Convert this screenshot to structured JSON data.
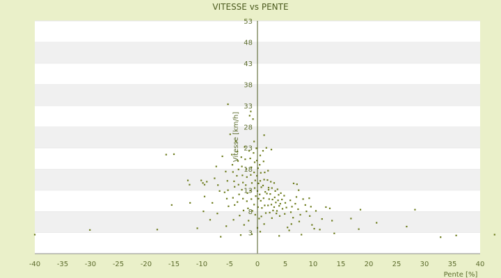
{
  "chart_data": {
    "type": "scatter",
    "title": "VITESSE vs PENTE",
    "xlabel": "Pente [%]",
    "ylabel": "Vitesse [km/h]",
    "xlim": [
      -40,
      40
    ],
    "ylim": [
      -2,
      53
    ],
    "x_ticks": [
      -40,
      -35,
      -30,
      -25,
      -20,
      -15,
      -10,
      -5,
      0,
      5,
      10,
      15,
      20,
      25,
      30,
      35,
      40
    ],
    "y_ticks": [
      3,
      8,
      13,
      18,
      23,
      28,
      33,
      38,
      43,
      48,
      53
    ],
    "grid": "horizontal bands",
    "legend": "none",
    "colors": {
      "background": "#eaf0c9",
      "band": "#f0f0f0",
      "plot": "#ffffff",
      "point": "#6b7a1a",
      "axis": "#4b5a1e"
    },
    "points": [
      [
        -40,
        2.5
      ],
      [
        -30.1,
        3.6
      ],
      [
        -18,
        3.7
      ],
      [
        -16.4,
        21.4
      ],
      [
        -15,
        21.5
      ],
      [
        -15.4,
        9.5
      ],
      [
        -12.2,
        14.3
      ],
      [
        -12.5,
        15.3
      ],
      [
        -12.1,
        10.0
      ],
      [
        -10.8,
        4.0
      ],
      [
        -10.1,
        15.3
      ],
      [
        -9.8,
        14.7
      ],
      [
        -9.5,
        14.3
      ],
      [
        -9.5,
        11.5
      ],
      [
        -9.7,
        8.0
      ],
      [
        -9.1,
        15.0
      ],
      [
        -8.5,
        6.0
      ],
      [
        -8.1,
        10.0
      ],
      [
        -7.4,
        18.6
      ],
      [
        -7.7,
        15.8
      ],
      [
        -7.1,
        14.2
      ],
      [
        -6.8,
        12.8
      ],
      [
        -7.2,
        7.5
      ],
      [
        -6.6,
        2.0
      ],
      [
        -6.3,
        21.0
      ],
      [
        -5.7,
        17.4
      ],
      [
        -5.4,
        15.2
      ],
      [
        -5.3,
        13.0
      ],
      [
        -5.9,
        12.5
      ],
      [
        -5.5,
        11.0
      ],
      [
        -5.2,
        9.2
      ],
      [
        -5.6,
        4.5
      ],
      [
        -5.3,
        33.3
      ],
      [
        -4.9,
        26.2
      ],
      [
        -4.6,
        21.4
      ],
      [
        -4.5,
        19.0
      ],
      [
        -4.4,
        17.3
      ],
      [
        -4.2,
        15.1
      ],
      [
        -4.1,
        13.8
      ],
      [
        -4.4,
        11.2
      ],
      [
        -4.1,
        9.5
      ],
      [
        -4.3,
        6.0
      ],
      [
        -3.9,
        24.5
      ],
      [
        -3.6,
        22.1
      ],
      [
        -3.5,
        19.9
      ],
      [
        -3.4,
        17.9
      ],
      [
        -3.7,
        16.4
      ],
      [
        -3.4,
        14.3
      ],
      [
        -3.3,
        12.0
      ],
      [
        -3.6,
        10.2
      ],
      [
        -3.2,
        7.0
      ],
      [
        -3.0,
        2.4
      ],
      [
        -2.9,
        20.8
      ],
      [
        -2.8,
        18.6
      ],
      [
        -2.7,
        16.5
      ],
      [
        -2.6,
        14.8
      ],
      [
        -2.8,
        13.1
      ],
      [
        -2.6,
        11.0
      ],
      [
        -2.5,
        8.2
      ],
      [
        -2.4,
        4.8
      ],
      [
        -2.3,
        23.2
      ],
      [
        -2.2,
        20.3
      ],
      [
        -2.0,
        18.0
      ],
      [
        -1.9,
        16.1
      ],
      [
        -2.1,
        14.2
      ],
      [
        -1.8,
        12.3
      ],
      [
        -1.9,
        10.4
      ],
      [
        -1.7,
        8.7
      ],
      [
        -1.6,
        5.8
      ],
      [
        -1.4,
        30.6
      ],
      [
        -1.2,
        31.6
      ],
      [
        -1.5,
        22.3
      ],
      [
        -1.3,
        20.5
      ],
      [
        -1.1,
        18.4
      ],
      [
        -1.2,
        16.6
      ],
      [
        -1.0,
        14.7
      ],
      [
        -1.3,
        12.9
      ],
      [
        -1.1,
        10.9
      ],
      [
        -0.9,
        8.1
      ],
      [
        -1.0,
        2.6
      ],
      [
        -0.8,
        29.8
      ],
      [
        -0.6,
        24.5
      ],
      [
        -0.7,
        21.8
      ],
      [
        -0.5,
        19.6
      ],
      [
        -0.6,
        17.2
      ],
      [
        -0.4,
        15.3
      ],
      [
        -0.5,
        13.5
      ],
      [
        -0.3,
        11.6
      ],
      [
        -0.6,
        9.6
      ],
      [
        -0.4,
        7.2
      ],
      [
        -0.2,
        22.9
      ],
      [
        -0.1,
        20.0
      ],
      [
        0.1,
        18.2
      ],
      [
        -0.1,
        16.4
      ],
      [
        0.2,
        14.6
      ],
      [
        0.0,
        12.8
      ],
      [
        0.2,
        11.0
      ],
      [
        0.1,
        9.0
      ],
      [
        0.3,
        6.3
      ],
      [
        0.0,
        4.1
      ],
      [
        0.5,
        21.2
      ],
      [
        0.4,
        19.0
      ],
      [
        0.6,
        17.1
      ],
      [
        0.5,
        15.2
      ],
      [
        0.7,
        13.7
      ],
      [
        0.4,
        12.0
      ],
      [
        0.6,
        10.5
      ],
      [
        0.8,
        8.8
      ],
      [
        0.7,
        6.8
      ],
      [
        0.5,
        3.2
      ],
      [
        1.2,
        26.0
      ],
      [
        1.0,
        22.3
      ],
      [
        1.1,
        19.8
      ],
      [
        1.3,
        17.2
      ],
      [
        1.2,
        15.5
      ],
      [
        1.0,
        14.1
      ],
      [
        1.4,
        12.6
      ],
      [
        1.1,
        11.1
      ],
      [
        1.3,
        9.4
      ],
      [
        1.5,
        7.6
      ],
      [
        1.2,
        5.0
      ],
      [
        1.6,
        23.0
      ],
      [
        1.9,
        17.6
      ],
      [
        1.8,
        15.4
      ],
      [
        2.0,
        13.6
      ],
      [
        1.7,
        12.2
      ],
      [
        2.1,
        10.9
      ],
      [
        1.9,
        9.4
      ],
      [
        2.2,
        7.7
      ],
      [
        2.0,
        13.1
      ],
      [
        2.5,
        22.6
      ],
      [
        2.4,
        15.0
      ],
      [
        2.6,
        13.5
      ],
      [
        2.3,
        12.1
      ],
      [
        2.7,
        10.8
      ],
      [
        2.5,
        9.6
      ],
      [
        2.8,
        8.2
      ],
      [
        2.6,
        6.4
      ],
      [
        3.0,
        14.7
      ],
      [
        3.2,
        12.8
      ],
      [
        3.1,
        11.3
      ],
      [
        3.3,
        10.1
      ],
      [
        3.0,
        9.0
      ],
      [
        3.4,
        7.5
      ],
      [
        3.6,
        13.2
      ],
      [
        3.8,
        11.9
      ],
      [
        3.7,
        10.6
      ],
      [
        3.9,
        9.3
      ],
      [
        3.5,
        8.1
      ],
      [
        4.2,
        12.3
      ],
      [
        4.4,
        10.8
      ],
      [
        4.1,
        9.8
      ],
      [
        4.5,
        8.6
      ],
      [
        4.0,
        6.9
      ],
      [
        4.8,
        11.7
      ],
      [
        5.0,
        10.0
      ],
      [
        5.2,
        8.9
      ],
      [
        4.9,
        7.4
      ],
      [
        5.4,
        4.2
      ],
      [
        3.9,
        2.2
      ],
      [
        5.9,
        10.6
      ],
      [
        6.2,
        9.1
      ],
      [
        6.0,
        7.8
      ],
      [
        6.4,
        6.5
      ],
      [
        6.1,
        5.0
      ],
      [
        5.7,
        3.5
      ],
      [
        6.5,
        14.6
      ],
      [
        7.1,
        14.4
      ],
      [
        7.4,
        13.0
      ],
      [
        7.0,
        11.4
      ],
      [
        6.8,
        9.8
      ],
      [
        7.3,
        8.5
      ],
      [
        7.7,
        7.2
      ],
      [
        7.5,
        5.6
      ],
      [
        7.9,
        2.5
      ],
      [
        8.2,
        10.9
      ],
      [
        8.6,
        9.5
      ],
      [
        8.8,
        8.0
      ],
      [
        9.3,
        11.1
      ],
      [
        9.6,
        9.1
      ],
      [
        9.4,
        6.9
      ],
      [
        9.8,
        4.8
      ],
      [
        10.2,
        3.9
      ],
      [
        10.5,
        8.1
      ],
      [
        11.2,
        3.7
      ],
      [
        11.6,
        6.2
      ],
      [
        12.3,
        9.0
      ],
      [
        13.0,
        8.7
      ],
      [
        13.4,
        5.8
      ],
      [
        13.8,
        2.8
      ],
      [
        16.8,
        6.3
      ],
      [
        18.2,
        3.8
      ],
      [
        18.5,
        8.4
      ],
      [
        21.4,
        5.3
      ],
      [
        26.8,
        4.4
      ],
      [
        28.3,
        8.4
      ],
      [
        32.9,
        1.9
      ],
      [
        35.7,
        2.3
      ],
      [
        42.6,
        2.5
      ]
    ]
  }
}
